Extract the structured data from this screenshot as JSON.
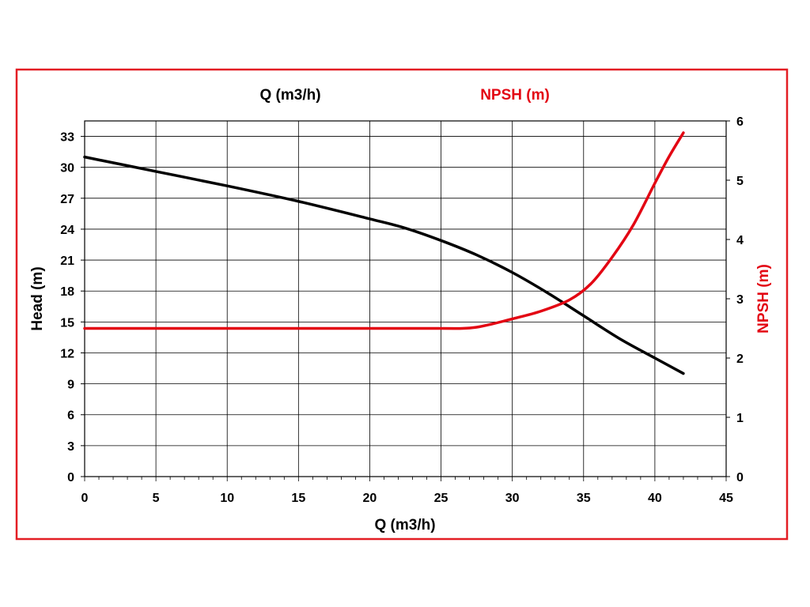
{
  "chart_data": {
    "type": "line",
    "top_labels": {
      "left": "Q (m3/h)",
      "right": "NPSH (m)"
    },
    "xlabel": "Q (m3/h)",
    "ylabel": "Head (m)",
    "y2label": "NPSH (m)",
    "xlim": [
      0,
      45
    ],
    "ylim": [
      0,
      34.5
    ],
    "y2lim": [
      0,
      6
    ],
    "x_ticks": [
      "0",
      "5",
      "10",
      "15",
      "20",
      "25",
      "30",
      "35",
      "40",
      "45"
    ],
    "y_ticks": [
      "0",
      "3",
      "6",
      "9",
      "12",
      "15",
      "18",
      "21",
      "24",
      "27",
      "30",
      "33"
    ],
    "y2_ticks": [
      "0",
      "1",
      "2",
      "3",
      "4",
      "5",
      "6"
    ],
    "grid": true,
    "colors": {
      "frame": "#e31e24",
      "head": "#000000",
      "npsh": "#e30613",
      "grid": "#000000"
    },
    "series": [
      {
        "axis": "left",
        "x": [
          0,
          5,
          10,
          15,
          20,
          22.5,
          25,
          27.5,
          30,
          32.5,
          35,
          37.5,
          40,
          42
        ],
        "values": [
          31,
          29.6,
          28.2,
          26.7,
          25,
          24.1,
          22.9,
          21.5,
          19.8,
          17.8,
          15.6,
          13.4,
          11.5,
          10
        ]
      },
      {
        "axis": "right",
        "x": [
          0,
          5,
          10,
          15,
          20,
          25,
          26.5,
          27.5,
          28.5,
          30,
          32,
          34,
          35.5,
          37,
          38.5,
          40,
          41,
          42
        ],
        "values": [
          2.5,
          2.5,
          2.5,
          2.5,
          2.5,
          2.5,
          2.5,
          2.52,
          2.57,
          2.66,
          2.79,
          2.98,
          3.25,
          3.7,
          4.25,
          4.95,
          5.4,
          5.8
        ]
      }
    ]
  }
}
